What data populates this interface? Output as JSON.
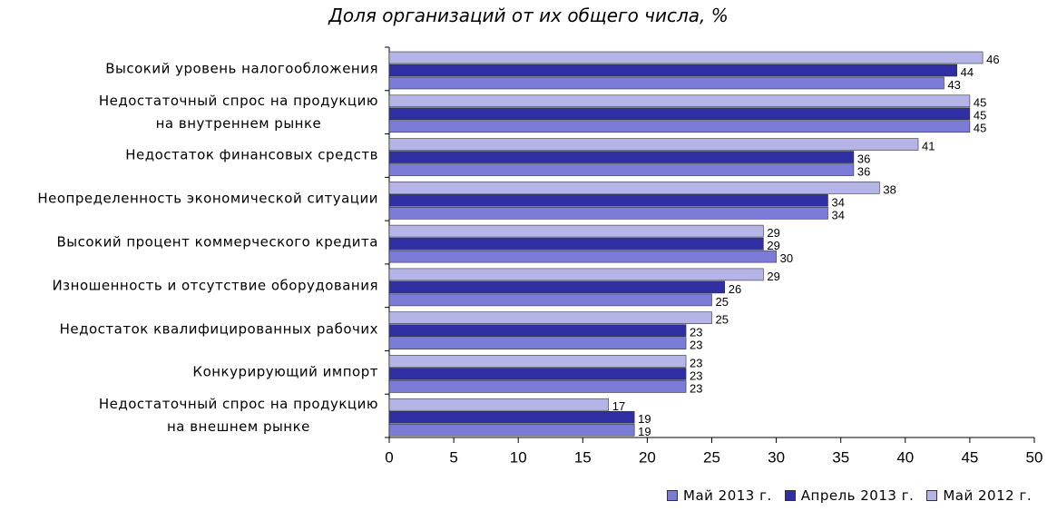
{
  "chart_data": {
    "type": "bar",
    "orientation": "horizontal",
    "title": "Доля организаций от их общего числа, %",
    "categories": [
      "Высокий уровень налогообложения",
      "Недостаточный спрос на продукцию\nна внутреннем рынке",
      "Недостаток финансовых средств",
      "Неопределенность экономической ситуации",
      "Высокий процент коммерческого кредита",
      "Изношенность и отсутствие оборудования",
      "Недостаток квалифицированных рабочих",
      "Конкурирующий импорт",
      "Недостаточный спрос на продукцию\nна внешнем рынке"
    ],
    "series": [
      {
        "name": "Май 2013 г.",
        "color": "#7b7bd8",
        "values": [
          43,
          45,
          36,
          34,
          30,
          25,
          23,
          23,
          19
        ]
      },
      {
        "name": "Апрель 2013 г.",
        "color": "#2f2fa3",
        "values": [
          44,
          45,
          36,
          34,
          29,
          26,
          23,
          23,
          19
        ]
      },
      {
        "name": "Май 2012 г.",
        "color": "#b4b4e6",
        "values": [
          46,
          45,
          41,
          38,
          29,
          29,
          25,
          23,
          17
        ]
      }
    ],
    "xlim": [
      0,
      50
    ],
    "xticks": [
      0,
      5,
      10,
      15,
      20,
      25,
      30,
      35,
      40,
      45,
      50
    ],
    "grid": false,
    "legend": "bottom-right"
  }
}
